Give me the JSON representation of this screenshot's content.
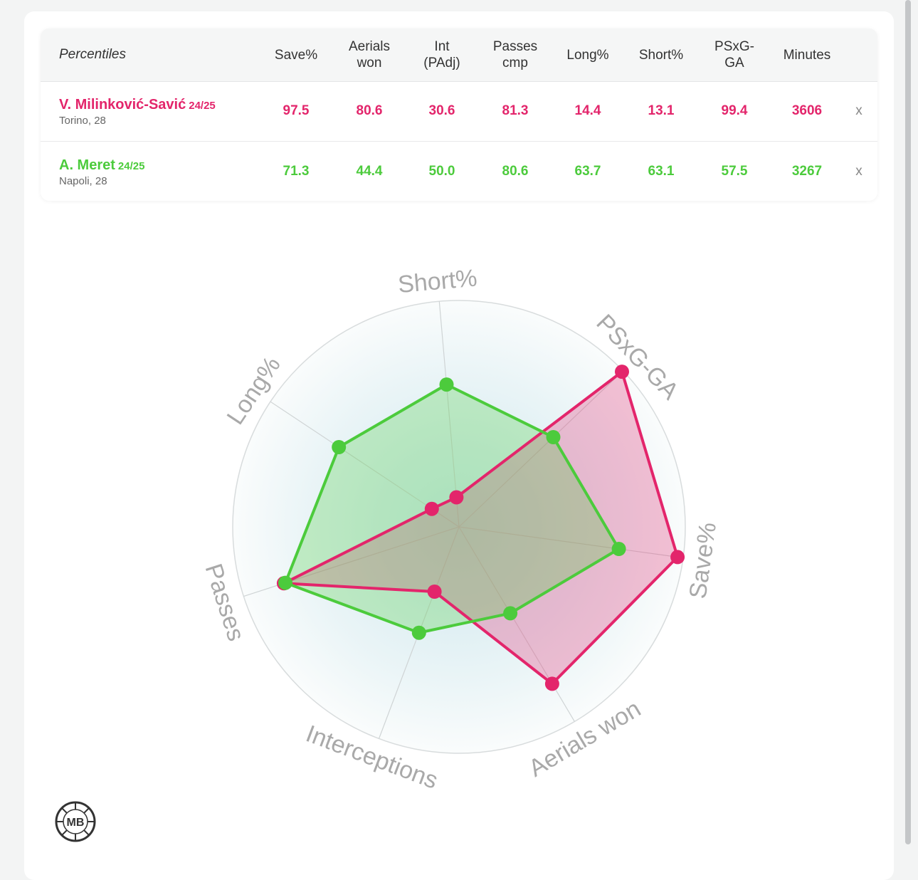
{
  "table": {
    "header_label": "Percentiles",
    "columns": [
      "Save%",
      "Aerials\nwon",
      "Int\n(PAdj)",
      "Passes\ncmp",
      "Long%",
      "Short%",
      "PSxG-\nGA",
      "Minutes"
    ],
    "remove_label": "x",
    "players": [
      {
        "name": "V. Milinković-Savić",
        "season": "24/25",
        "club": "Torino, 28",
        "color": "#e3256b",
        "values": [
          "97.5",
          "80.6",
          "30.6",
          "81.3",
          "14.4",
          "13.1",
          "99.4",
          "3606"
        ]
      },
      {
        "name": "A. Meret",
        "season": "24/25",
        "club": "Napoli, 28",
        "color": "#4ccb3c",
        "values": [
          "71.3",
          "44.4",
          "50.0",
          "80.6",
          "63.7",
          "63.1",
          "57.5",
          "3267"
        ]
      }
    ]
  },
  "chart_data": {
    "type": "radar",
    "axes": [
      "Short%",
      "PSxG-GA",
      "Save%",
      "Aerials won",
      "Interceptions",
      "Passes",
      "Long%"
    ],
    "range": [
      0,
      100
    ],
    "series": [
      {
        "name": "V. Milinković-Savić",
        "color": "#e3256b",
        "values": [
          13.1,
          99.4,
          97.5,
          80.6,
          30.6,
          81.3,
          14.4
        ]
      },
      {
        "name": "A. Meret",
        "color": "#4ccb3c",
        "values": [
          63.1,
          57.5,
          71.3,
          44.4,
          50.0,
          80.6,
          63.7
        ]
      }
    ]
  },
  "logo": {
    "text": "MB"
  }
}
